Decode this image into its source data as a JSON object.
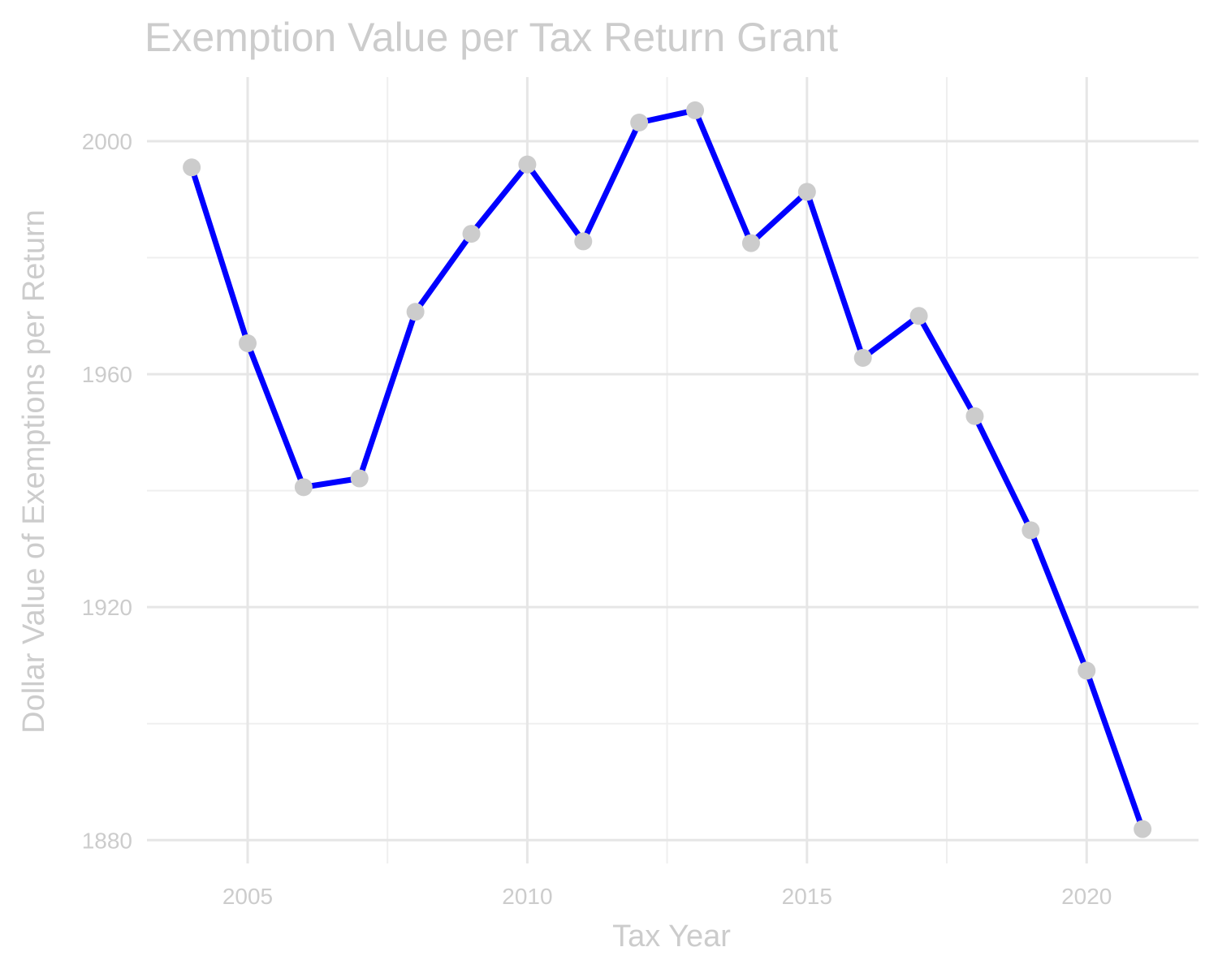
{
  "chart_data": {
    "type": "line",
    "title": "Exemption Value per Tax Return Grant",
    "xlabel": "Tax Year",
    "ylabel": "Dollar Value of Exemptions per Return",
    "xlim": [
      2003.2,
      2022.0
    ],
    "ylim": [
      1876.0,
      2011.0
    ],
    "x_ticks": [
      2005,
      2010,
      2015,
      2020
    ],
    "x_tick_labels": [
      "2005",
      "2010",
      "2015",
      "2020"
    ],
    "x_minor_ticks": [
      2007.5,
      2012.5,
      2017.5
    ],
    "y_ticks": [
      1880,
      1920,
      1960,
      2000
    ],
    "y_tick_labels": [
      "1880",
      "1920",
      "1960",
      "2000"
    ],
    "y_minor_ticks": [
      1900,
      1940,
      1980
    ],
    "grid": true,
    "series": [
      {
        "x": [
          2004,
          2005,
          2006,
          2007,
          2008,
          2009,
          2010,
          2011,
          2012,
          2013,
          2014,
          2015,
          2016,
          2017,
          2018,
          2019,
          2020,
          2021
        ],
        "values": [
          1995.5,
          1965.3,
          1940.6,
          1942.1,
          1970.7,
          1984.1,
          1996.0,
          1982.8,
          2003.2,
          2005.3,
          1982.5,
          1991.3,
          1962.8,
          1970.0,
          1952.8,
          1933.2,
          1909.1,
          1881.9
        ]
      }
    ],
    "colors": {
      "line": "#0000ff",
      "point": "#cccccc",
      "text": "#cccccc",
      "grid_major": "#e6e6e6",
      "grid_minor": "#efefef"
    }
  }
}
